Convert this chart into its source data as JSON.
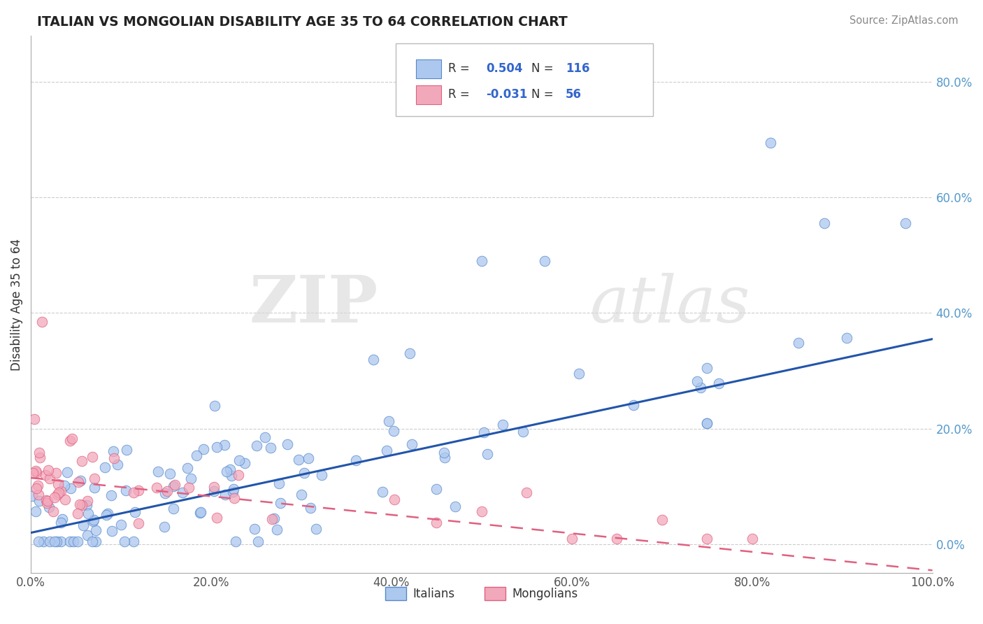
{
  "title": "ITALIAN VS MONGOLIAN DISABILITY AGE 35 TO 64 CORRELATION CHART",
  "source_text": "Source: ZipAtlas.com",
  "ylabel": "Disability Age 35 to 64",
  "xlim": [
    0.0,
    1.0
  ],
  "ylim": [
    -0.05,
    0.88
  ],
  "xticks": [
    0.0,
    0.2,
    0.4,
    0.6,
    0.8,
    1.0
  ],
  "xticklabels": [
    "0.0%",
    "20.0%",
    "40.0%",
    "60.0%",
    "80.0%",
    "100.0%"
  ],
  "yticks": [
    0.0,
    0.2,
    0.4,
    0.6,
    0.8
  ],
  "yticklabels": [
    "0.0%",
    "20.0%",
    "40.0%",
    "60.0%",
    "80.0%"
  ],
  "italian_color": "#adc8ee",
  "mongolian_color": "#f2a8bb",
  "italian_edge_color": "#5588cc",
  "mongolian_edge_color": "#e06080",
  "trend_italian_color": "#2255aa",
  "trend_mongolian_color": "#e06080",
  "R_italian": 0.504,
  "N_italian": 116,
  "R_mongolian": -0.031,
  "N_mongolian": 56,
  "watermark_zip": "ZIP",
  "watermark_atlas": "atlas",
  "background_color": "#ffffff",
  "grid_color": "#cccccc",
  "title_color": "#222222",
  "trend_it_x0": 0.0,
  "trend_it_y0": 0.02,
  "trend_it_x1": 1.0,
  "trend_it_y1": 0.355,
  "trend_mg_x0": 0.0,
  "trend_mg_y0": 0.115,
  "trend_mg_x1": 1.0,
  "trend_mg_y1": -0.045
}
